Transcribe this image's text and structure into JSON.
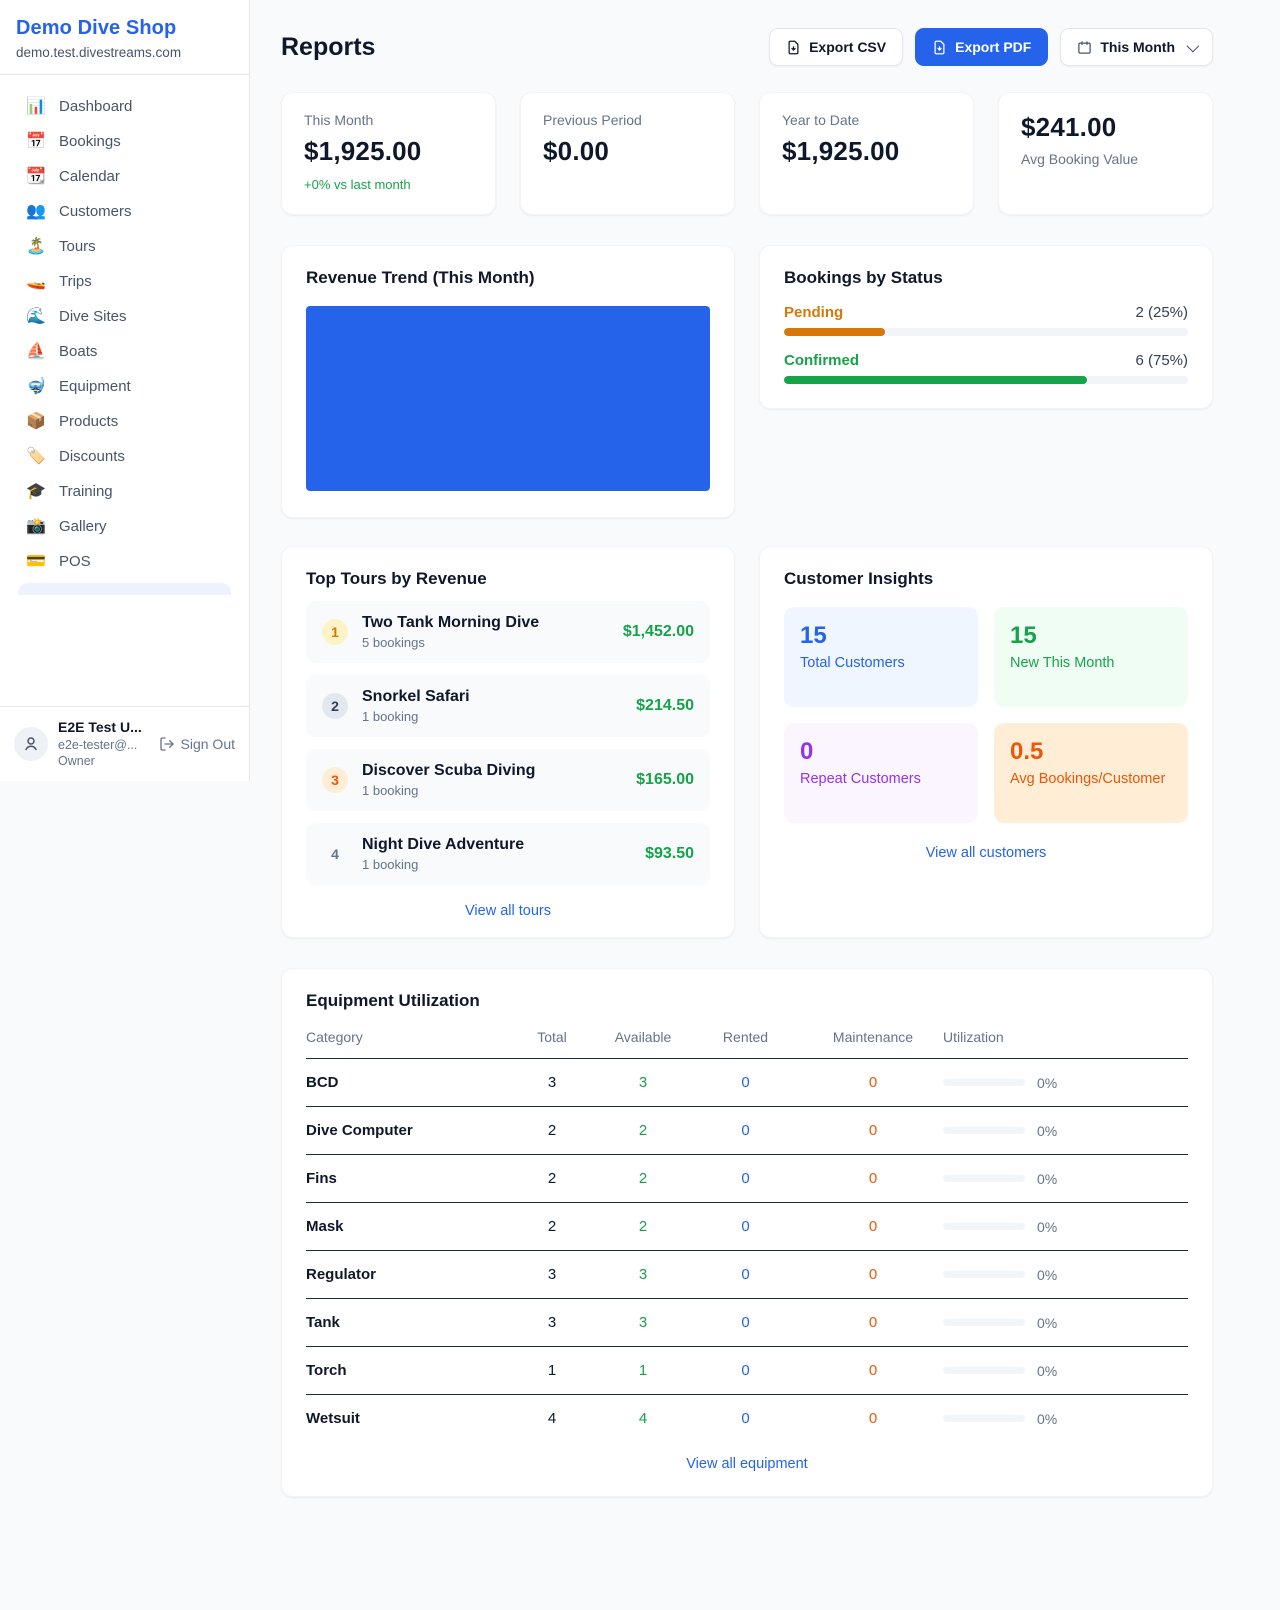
{
  "colors": {
    "accent": "#2563eb",
    "green": "#16a34a",
    "amber": "#d97706",
    "bronze": "#ea580c",
    "purple": "#9333ea"
  },
  "sidebar": {
    "brand": {
      "name": "Demo Dive Shop",
      "domain": "demo.test.divestreams.com"
    },
    "nav": [
      {
        "icon": "bar-chart-icon",
        "glyph": "📊",
        "label": "Dashboard"
      },
      {
        "icon": "calendar-date-icon",
        "glyph": "📅",
        "label": "Bookings"
      },
      {
        "icon": "tear-off-calendar-icon",
        "glyph": "📆",
        "label": "Calendar"
      },
      {
        "icon": "people-icon",
        "glyph": "👥",
        "label": "Customers"
      },
      {
        "icon": "island-icon",
        "glyph": "🏝️",
        "label": "Tours"
      },
      {
        "icon": "speedboat-icon",
        "glyph": "🚤",
        "label": "Trips"
      },
      {
        "icon": "wave-icon",
        "glyph": "🌊",
        "label": "Dive Sites"
      },
      {
        "icon": "sailboat-icon",
        "glyph": "⛵",
        "label": "Boats"
      },
      {
        "icon": "diving-mask-icon",
        "glyph": "🤿",
        "label": "Equipment"
      },
      {
        "icon": "package-icon",
        "glyph": "📦",
        "label": "Products"
      },
      {
        "icon": "label-tag-icon",
        "glyph": "🏷️",
        "label": "Discounts"
      },
      {
        "icon": "graduation-cap-icon",
        "glyph": "🎓",
        "label": "Training"
      },
      {
        "icon": "camera-icon",
        "glyph": "📸",
        "label": "Gallery"
      },
      {
        "icon": "credit-card-icon",
        "glyph": "💳",
        "label": "POS"
      }
    ],
    "user": {
      "name": "E2E Test U...",
      "email": "e2e-tester@...",
      "role": "Owner",
      "sign_out_label": "Sign Out"
    }
  },
  "header": {
    "title": "Reports",
    "export_csv_label": "Export CSV",
    "export_pdf_label": "Export PDF",
    "period_label": "This Month"
  },
  "stats": {
    "this_month": {
      "label": "This Month",
      "value": "$1,925.00",
      "delta": "+0% vs last month"
    },
    "previous_period": {
      "label": "Previous Period",
      "value": "$0.00"
    },
    "year_to_date": {
      "label": "Year to Date",
      "value": "$1,925.00"
    },
    "avg_booking": {
      "value": "$241.00",
      "label": "Avg Booking Value"
    }
  },
  "revenue_trend": {
    "title": "Revenue Trend (This Month)"
  },
  "chart_data": {
    "type": "bar",
    "title": "Revenue Trend (This Month)",
    "categories": [
      ""
    ],
    "series": [
      {
        "name": "Revenue",
        "values": [
          1925
        ]
      }
    ],
    "color": "#2563eb",
    "xlabel": "",
    "ylabel": "",
    "note": "single solid blue bar filling the entire plot area; no axes, ticks, gridlines or labels visible"
  },
  "bookings_by_status": {
    "title": "Bookings by Status",
    "items": [
      {
        "label": "Pending",
        "value": "2 (25%)",
        "pct": 25,
        "color": "#d97706"
      },
      {
        "label": "Confirmed",
        "value": "6 (75%)",
        "pct": 75,
        "color": "#16a34a"
      }
    ]
  },
  "top_tours": {
    "title": "Top Tours by Revenue",
    "items": [
      {
        "rank": "1",
        "name": "Two Tank Morning Dive",
        "bookings": "5 bookings",
        "amount": "$1,452.00"
      },
      {
        "rank": "2",
        "name": "Snorkel Safari",
        "bookings": "1 booking",
        "amount": "$214.50"
      },
      {
        "rank": "3",
        "name": "Discover Scuba Diving",
        "bookings": "1 booking",
        "amount": "$165.00"
      },
      {
        "rank": "4",
        "name": "Night Dive Adventure",
        "bookings": "1 booking",
        "amount": "$93.50"
      }
    ],
    "view_all": "View all tours"
  },
  "customer_insights": {
    "title": "Customer Insights",
    "tiles": [
      {
        "value": "15",
        "label": "Total Customers",
        "color": "#2563eb",
        "bg": "#eff6ff"
      },
      {
        "value": "15",
        "label": "New This Month",
        "color": "#16a34a",
        "bg": "#f0fdf4"
      },
      {
        "value": "0",
        "label": "Repeat Customers",
        "color": "#9333ea",
        "bg": "#faf5ff"
      },
      {
        "value": "0.5",
        "label": "Avg Bookings/Customer",
        "color": "#ea580c",
        "bg": "#ffedd5"
      }
    ],
    "view_all": "View all customers"
  },
  "equipment": {
    "title": "Equipment Utilization",
    "columns": [
      "Category",
      "Total",
      "Available",
      "Rented",
      "Maintenance",
      "Utilization"
    ],
    "rows": [
      {
        "category": "BCD",
        "total": "3",
        "available": "3",
        "rented": "0",
        "maintenance": "0",
        "utilization": "0%",
        "utilization_pct": 0
      },
      {
        "category": "Dive Computer",
        "total": "2",
        "available": "2",
        "rented": "0",
        "maintenance": "0",
        "utilization": "0%",
        "utilization_pct": 0
      },
      {
        "category": "Fins",
        "total": "2",
        "available": "2",
        "rented": "0",
        "maintenance": "0",
        "utilization": "0%",
        "utilization_pct": 0
      },
      {
        "category": "Mask",
        "total": "2",
        "available": "2",
        "rented": "0",
        "maintenance": "0",
        "utilization": "0%",
        "utilization_pct": 0
      },
      {
        "category": "Regulator",
        "total": "3",
        "available": "3",
        "rented": "0",
        "maintenance": "0",
        "utilization": "0%",
        "utilization_pct": 0
      },
      {
        "category": "Tank",
        "total": "3",
        "available": "3",
        "rented": "0",
        "maintenance": "0",
        "utilization": "0%",
        "utilization_pct": 0
      },
      {
        "category": "Torch",
        "total": "1",
        "available": "1",
        "rented": "0",
        "maintenance": "0",
        "utilization": "0%",
        "utilization_pct": 0
      },
      {
        "category": "Wetsuit",
        "total": "4",
        "available": "4",
        "rented": "0",
        "maintenance": "0",
        "utilization": "0%",
        "utilization_pct": 0
      }
    ],
    "view_all": "View all equipment"
  }
}
